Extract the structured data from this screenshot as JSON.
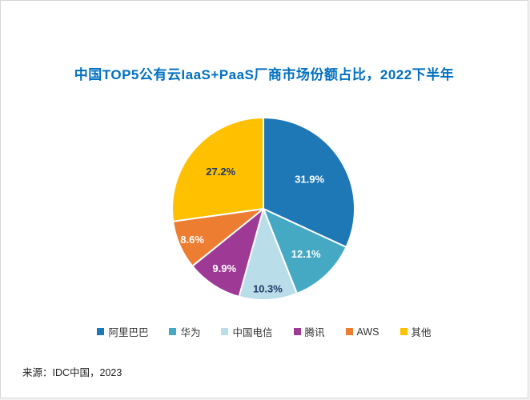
{
  "chart_data": {
    "type": "pie",
    "title": "中国TOP5公有云IaaS+PaaS厂商市场份额占比，2022下半年",
    "title_color": "#0070C0",
    "categories": [
      "阿里巴巴",
      "华为",
      "中国电信",
      "腾讯",
      "AWS",
      "其他"
    ],
    "values": [
      31.9,
      12.1,
      10.3,
      9.9,
      8.6,
      27.2
    ],
    "labels": [
      "31.9%",
      "12.1%",
      "10.3%",
      "9.9%",
      "8.6%",
      "27.2%"
    ],
    "colors": [
      "#1F78B6",
      "#45A9C4",
      "#B9DDE9",
      "#9E3A96",
      "#ED7D31",
      "#FFC000"
    ],
    "label_colors": [
      "#FFFFFF",
      "#FFFFFF",
      "#1F3864",
      "#FFFFFF",
      "#FFFFFF",
      "#1F3864"
    ],
    "label_radius": [
      0.6,
      0.68,
      0.88,
      0.78,
      0.85,
      0.62
    ],
    "start_angle": "top",
    "direction": "clockwise",
    "legend_position": "bottom",
    "grid": false,
    "source": "来源：IDC中国，2023"
  }
}
